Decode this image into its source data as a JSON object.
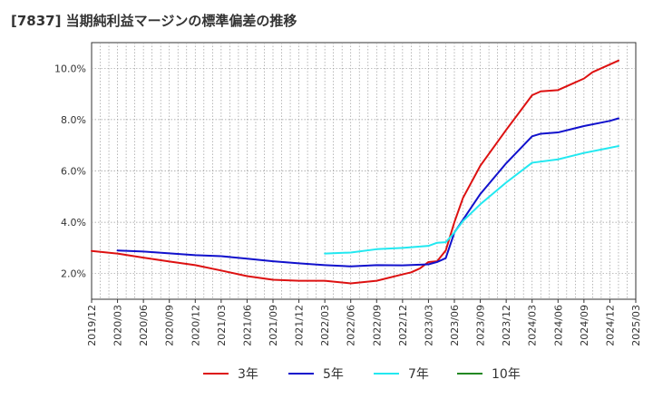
{
  "title": "[7837]  当期純利益マージンの標準偏差の推移",
  "chart_data": {
    "type": "line",
    "title": "[7837]  当期純利益マージンの標準偏差の推移",
    "xlabel": "",
    "ylabel": "",
    "x_ticks": [
      "2019/12",
      "2020/03",
      "2020/06",
      "2020/09",
      "2020/12",
      "2021/03",
      "2021/06",
      "2021/09",
      "2021/12",
      "2022/03",
      "2022/06",
      "2022/09",
      "2022/12",
      "2023/03",
      "2023/06",
      "2023/09",
      "2023/12",
      "2024/03",
      "2024/06",
      "2024/09",
      "2024/12",
      "2025/03"
    ],
    "y_ticks": [
      "2.0%",
      "4.0%",
      "6.0%",
      "8.0%",
      "10.0%"
    ],
    "y_tick_values": [
      2.0,
      4.0,
      6.0,
      8.0,
      10.0
    ],
    "ylim": [
      1.0,
      11.0
    ],
    "xlim": [
      "2019/12",
      "2025/03"
    ],
    "grid": true,
    "legend_position": "bottom",
    "series": [
      {
        "name": "3年",
        "color": "#dd1111",
        "points": [
          [
            "2019/12",
            2.88
          ],
          [
            "2020/03",
            2.78
          ],
          [
            "2020/06",
            2.62
          ],
          [
            "2020/09",
            2.47
          ],
          [
            "2020/12",
            2.33
          ],
          [
            "2021/03",
            2.12
          ],
          [
            "2021/06",
            1.9
          ],
          [
            "2021/09",
            1.76
          ],
          [
            "2021/12",
            1.72
          ],
          [
            "2022/03",
            1.72
          ],
          [
            "2022/06",
            1.62
          ],
          [
            "2022/09",
            1.72
          ],
          [
            "2022/12",
            1.97
          ],
          [
            "2023/01",
            2.05
          ],
          [
            "2023/02",
            2.2
          ],
          [
            "2023/03",
            2.45
          ],
          [
            "2023/04",
            2.48
          ],
          [
            "2023/05",
            2.9
          ],
          [
            "2023/06",
            4.0
          ],
          [
            "2023/07",
            4.95
          ],
          [
            "2023/09",
            6.2
          ],
          [
            "2023/12",
            7.6
          ],
          [
            "2024/03",
            8.95
          ],
          [
            "2024/04",
            9.1
          ],
          [
            "2024/06",
            9.15
          ],
          [
            "2024/09",
            9.6
          ],
          [
            "2024/10",
            9.85
          ],
          [
            "2024/12",
            10.15
          ],
          [
            "2025/01",
            10.3
          ]
        ]
      },
      {
        "name": "5年",
        "color": "#1111cc",
        "points": [
          [
            "2020/03",
            2.9
          ],
          [
            "2020/06",
            2.86
          ],
          [
            "2020/09",
            2.79
          ],
          [
            "2020/12",
            2.72
          ],
          [
            "2021/03",
            2.68
          ],
          [
            "2021/06",
            2.58
          ],
          [
            "2021/09",
            2.48
          ],
          [
            "2021/12",
            2.4
          ],
          [
            "2022/03",
            2.33
          ],
          [
            "2022/06",
            2.28
          ],
          [
            "2022/09",
            2.33
          ],
          [
            "2022/12",
            2.32
          ],
          [
            "2023/03",
            2.36
          ],
          [
            "2023/04",
            2.45
          ],
          [
            "2023/05",
            2.6
          ],
          [
            "2023/06",
            3.6
          ],
          [
            "2023/07",
            4.1
          ],
          [
            "2023/09",
            5.1
          ],
          [
            "2023/12",
            6.3
          ],
          [
            "2024/03",
            7.35
          ],
          [
            "2024/04",
            7.45
          ],
          [
            "2024/06",
            7.5
          ],
          [
            "2024/09",
            7.75
          ],
          [
            "2024/12",
            7.95
          ],
          [
            "2025/01",
            8.05
          ]
        ]
      },
      {
        "name": "7年",
        "color": "#22e8f0",
        "points": [
          [
            "2022/03",
            2.78
          ],
          [
            "2022/06",
            2.82
          ],
          [
            "2022/09",
            2.95
          ],
          [
            "2022/12",
            3.0
          ],
          [
            "2023/03",
            3.08
          ],
          [
            "2023/04",
            3.2
          ],
          [
            "2023/05",
            3.22
          ],
          [
            "2023/06",
            3.6
          ],
          [
            "2023/07",
            4.05
          ],
          [
            "2023/09",
            4.7
          ],
          [
            "2023/12",
            5.55
          ],
          [
            "2024/03",
            6.32
          ],
          [
            "2024/06",
            6.45
          ],
          [
            "2024/09",
            6.7
          ],
          [
            "2024/12",
            6.9
          ],
          [
            "2025/01",
            6.97
          ]
        ]
      },
      {
        "name": "10年",
        "color": "#228822",
        "points": []
      }
    ]
  }
}
